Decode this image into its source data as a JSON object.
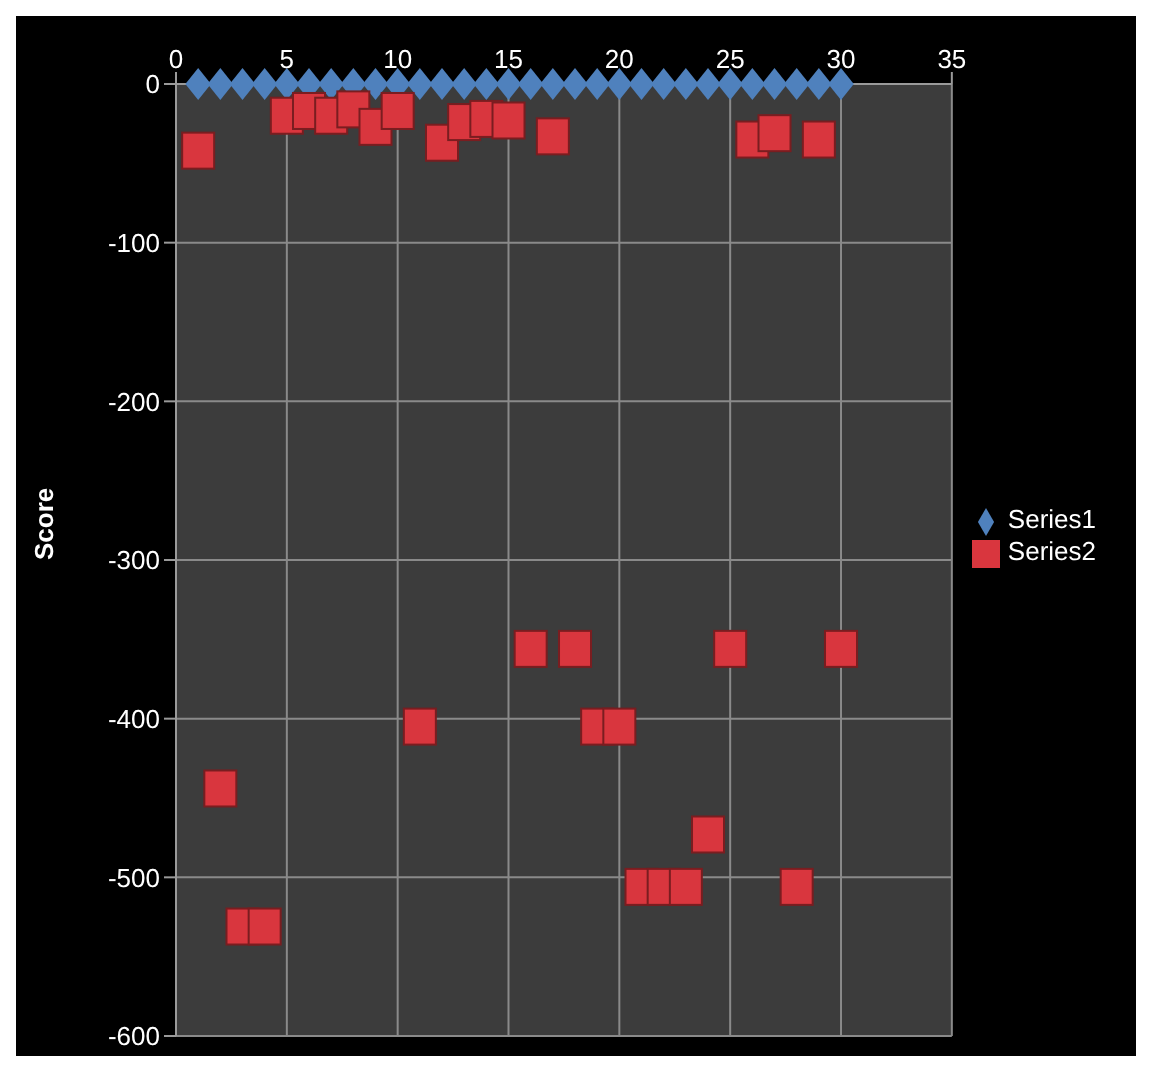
{
  "chart_data": {
    "type": "scatter",
    "ylabel": "Score",
    "xlim": [
      0,
      35
    ],
    "xticks": [
      0,
      5,
      10,
      15,
      20,
      25,
      30,
      35
    ],
    "ylim": [
      -600,
      0
    ],
    "yticks": [
      -600,
      -500,
      -400,
      -300,
      -200,
      -100,
      0
    ],
    "grid": true,
    "legend": "right",
    "x": [
      1,
      2,
      3,
      4,
      5,
      6,
      7,
      8,
      9,
      10,
      11,
      12,
      13,
      14,
      15,
      16,
      17,
      18,
      19,
      20,
      21,
      22,
      23,
      24,
      25,
      26,
      27,
      28,
      29,
      30
    ],
    "series": [
      {
        "name": "Series1",
        "color": "#4f81bd",
        "marker": "diamond",
        "values": [
          0,
          0,
          0,
          0,
          0,
          0,
          0,
          0,
          0,
          0,
          0,
          0,
          0,
          0,
          0,
          0,
          0,
          0,
          0,
          0,
          0,
          0,
          0,
          0,
          0,
          0,
          0,
          0,
          0,
          0
        ]
      },
      {
        "name": "Series2",
        "color": "#d9363e",
        "marker": "square",
        "values": [
          -42,
          -444,
          -531,
          -531,
          -20,
          -17,
          -20,
          -16,
          -27,
          -17,
          -405,
          -37,
          -24,
          -22,
          -23,
          -356,
          -33,
          -356,
          -405,
          -405,
          -506,
          -506,
          -506,
          -473,
          -356,
          -35,
          -31,
          -506,
          -35,
          -356
        ]
      }
    ]
  }
}
